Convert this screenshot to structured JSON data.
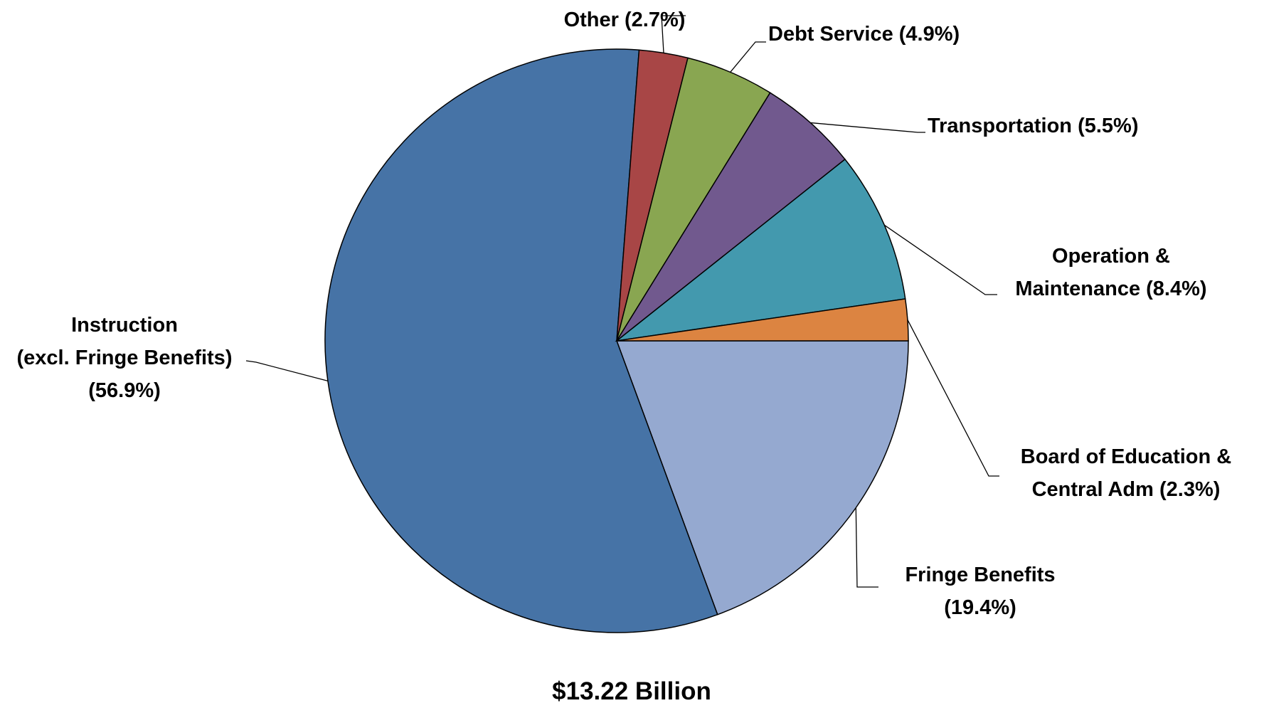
{
  "chart_data": {
    "type": "pie",
    "slices": [
      {
        "label_lines": [
          "Fringe Benefits",
          "(19.4%)"
        ],
        "value": 19.4,
        "color": "#95a9d0"
      },
      {
        "label_lines": [
          "Instruction",
          "(excl. Fringe Benefits)",
          "(56.9%)"
        ],
        "value": 56.9,
        "color": "#4673a6"
      },
      {
        "label_lines": [
          "Other (2.7%)"
        ],
        "value": 2.7,
        "color": "#a84646"
      },
      {
        "label_lines": [
          "Debt Service (4.9%)"
        ],
        "value": 4.9,
        "color": "#89a651"
      },
      {
        "label_lines": [
          "Transportation (5.5%)"
        ],
        "value": 5.5,
        "color": "#71598e"
      },
      {
        "label_lines": [
          "Operation &",
          "Maintenance (8.4%)"
        ],
        "value": 8.4,
        "color": "#4399ae"
      },
      {
        "label_lines": [
          "Board of Education &",
          "Central Adm (2.3%)"
        ],
        "value": 2.3,
        "color": "#dc8441"
      }
    ],
    "total_label": "$13.22 Billion"
  }
}
